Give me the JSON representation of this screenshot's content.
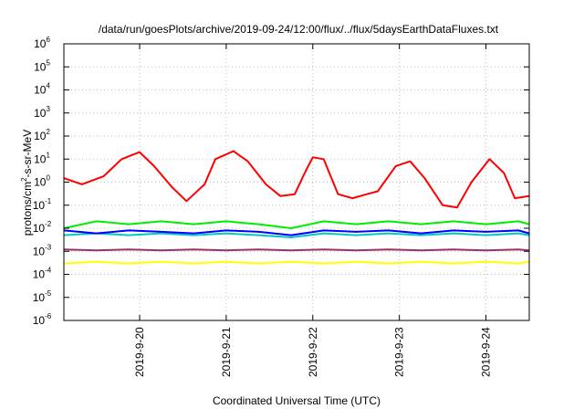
{
  "chart_data": {
    "type": "line",
    "title": "/data/run/goesPlots/archive/2019-09-24/12:00/flux/../flux/5daysEarthDataFluxes.txt",
    "xlabel": "Coordinated Universal Time (UTC)",
    "ylabel": {
      "prefix": "protons/cm",
      "sup": "2",
      "suffix": "-s-sr-MeV"
    },
    "yscale": "log",
    "ylim": [
      1e-06,
      1000000.0
    ],
    "y_ticks": [
      {
        "base": "10",
        "exp": "-6"
      },
      {
        "base": "10",
        "exp": "-5"
      },
      {
        "base": "10",
        "exp": "-4"
      },
      {
        "base": "10",
        "exp": "-3"
      },
      {
        "base": "10",
        "exp": "-2"
      },
      {
        "base": "10",
        "exp": "-1"
      },
      {
        "base": "10",
        "exp": "0"
      },
      {
        "base": "10",
        "exp": "1"
      },
      {
        "base": "10",
        "exp": "2"
      },
      {
        "base": "10",
        "exp": "3"
      },
      {
        "base": "10",
        "exp": "4"
      },
      {
        "base": "10",
        "exp": "5"
      },
      {
        "base": "10",
        "exp": "6"
      }
    ],
    "xlim": [
      "2019-09-19 03:00",
      "2019-09-24 12:00"
    ],
    "x_ticks": [
      "2019-9-20",
      "2019-9-21",
      "2019-9-22",
      "2019-9-23",
      "2019-9-24"
    ],
    "grid": true,
    "colors": [
      "#ff0000",
      "#00ee00",
      "#00c8c8",
      "#0000ff",
      "#993366",
      "#ffff00"
    ],
    "series": [
      {
        "color": "#ff0000",
        "x": [
          "2019-09-19 03:00",
          "2019-09-19 08:00",
          "2019-09-19 14:00",
          "2019-09-19 19:00",
          "2019-09-20 00:00",
          "2019-09-20 04:00",
          "2019-09-20 09:00",
          "2019-09-20 13:00",
          "2019-09-20 18:00",
          "2019-09-20 21:00",
          "2019-09-21 02:00",
          "2019-09-21 06:00",
          "2019-09-21 11:00",
          "2019-09-21 15:00",
          "2019-09-21 19:00",
          "2019-09-21 22:00",
          "2019-09-22 00:00",
          "2019-09-22 03:00",
          "2019-09-22 07:00",
          "2019-09-22 11:00",
          "2019-09-22 15:00",
          "2019-09-22 18:00",
          "2019-09-22 23:00",
          "2019-09-23 03:00",
          "2019-09-23 07:00",
          "2019-09-23 12:00",
          "2019-09-23 16:00",
          "2019-09-23 20:00",
          "2019-09-24 01:00",
          "2019-09-24 05:00",
          "2019-09-24 08:00",
          "2019-09-24 12:00"
        ],
        "y": [
          1.5,
          0.8,
          1.8,
          10,
          20,
          5,
          0.6,
          0.15,
          0.8,
          10,
          22,
          8,
          0.8,
          0.25,
          0.3,
          3,
          12,
          10,
          0.3,
          0.2,
          0.3,
          0.4,
          5,
          8,
          1.5,
          0.1,
          0.08,
          1,
          10,
          2.5,
          0.2,
          0.25
        ]
      },
      {
        "color": "#00ee00",
        "x": [
          "2019-09-19 03:00",
          "2019-09-19 12:00",
          "2019-09-19 21:00",
          "2019-09-20 06:00",
          "2019-09-20 15:00",
          "2019-09-21 00:00",
          "2019-09-21 09:00",
          "2019-09-21 18:00",
          "2019-09-22 03:00",
          "2019-09-22 12:00",
          "2019-09-22 21:00",
          "2019-09-23 06:00",
          "2019-09-23 15:00",
          "2019-09-24 00:00",
          "2019-09-24 09:00",
          "2019-09-24 12:00"
        ],
        "y": [
          0.01,
          0.02,
          0.015,
          0.02,
          0.015,
          0.02,
          0.015,
          0.01,
          0.02,
          0.015,
          0.02,
          0.015,
          0.02,
          0.015,
          0.02,
          0.015
        ]
      },
      {
        "color": "#00c8c8",
        "x": [
          "2019-09-19 03:00",
          "2019-09-19 12:00",
          "2019-09-19 21:00",
          "2019-09-20 06:00",
          "2019-09-20 15:00",
          "2019-09-21 00:00",
          "2019-09-21 09:00",
          "2019-09-21 18:00",
          "2019-09-22 03:00",
          "2019-09-22 12:00",
          "2019-09-22 21:00",
          "2019-09-23 06:00",
          "2019-09-23 15:00",
          "2019-09-24 00:00",
          "2019-09-24 09:00",
          "2019-09-24 12:00"
        ],
        "y": [
          0.005,
          0.006,
          0.005,
          0.006,
          0.005,
          0.006,
          0.005,
          0.004,
          0.006,
          0.005,
          0.006,
          0.005,
          0.006,
          0.005,
          0.006,
          0.005
        ]
      },
      {
        "color": "#0000ff",
        "x": [
          "2019-09-19 03:00",
          "2019-09-19 12:00",
          "2019-09-19 21:00",
          "2019-09-20 06:00",
          "2019-09-20 15:00",
          "2019-09-21 00:00",
          "2019-09-21 09:00",
          "2019-09-21 18:00",
          "2019-09-22 03:00",
          "2019-09-22 12:00",
          "2019-09-22 21:00",
          "2019-09-23 06:00",
          "2019-09-23 15:00",
          "2019-09-24 00:00",
          "2019-09-24 09:00",
          "2019-09-24 12:00"
        ],
        "y": [
          0.008,
          0.006,
          0.008,
          0.007,
          0.006,
          0.008,
          0.007,
          0.005,
          0.008,
          0.007,
          0.008,
          0.006,
          0.008,
          0.007,
          0.008,
          0.006
        ]
      },
      {
        "color": "#993366",
        "x": [
          "2019-09-19 03:00",
          "2019-09-19 12:00",
          "2019-09-19 21:00",
          "2019-09-20 06:00",
          "2019-09-20 15:00",
          "2019-09-21 00:00",
          "2019-09-21 09:00",
          "2019-09-21 18:00",
          "2019-09-22 03:00",
          "2019-09-22 12:00",
          "2019-09-22 21:00",
          "2019-09-23 06:00",
          "2019-09-23 15:00",
          "2019-09-24 00:00",
          "2019-09-24 09:00",
          "2019-09-24 12:00"
        ],
        "y": [
          0.0012,
          0.0011,
          0.0012,
          0.0011,
          0.0012,
          0.0011,
          0.0012,
          0.0011,
          0.0012,
          0.0011,
          0.0012,
          0.0011,
          0.0012,
          0.0011,
          0.0012,
          0.0011
        ]
      },
      {
        "color": "#ffff00",
        "x": [
          "2019-09-19 03:00",
          "2019-09-19 12:00",
          "2019-09-19 21:00",
          "2019-09-20 06:00",
          "2019-09-20 15:00",
          "2019-09-21 00:00",
          "2019-09-21 09:00",
          "2019-09-21 18:00",
          "2019-09-22 03:00",
          "2019-09-22 12:00",
          "2019-09-22 21:00",
          "2019-09-23 06:00",
          "2019-09-23 15:00",
          "2019-09-24 00:00",
          "2019-09-24 09:00",
          "2019-09-24 12:00"
        ],
        "y": [
          0.0003,
          0.00035,
          0.0003,
          0.00035,
          0.0003,
          0.00035,
          0.0003,
          0.00035,
          0.0003,
          0.00035,
          0.0003,
          0.00035,
          0.0003,
          0.00035,
          0.0003,
          0.00035
        ]
      }
    ]
  }
}
